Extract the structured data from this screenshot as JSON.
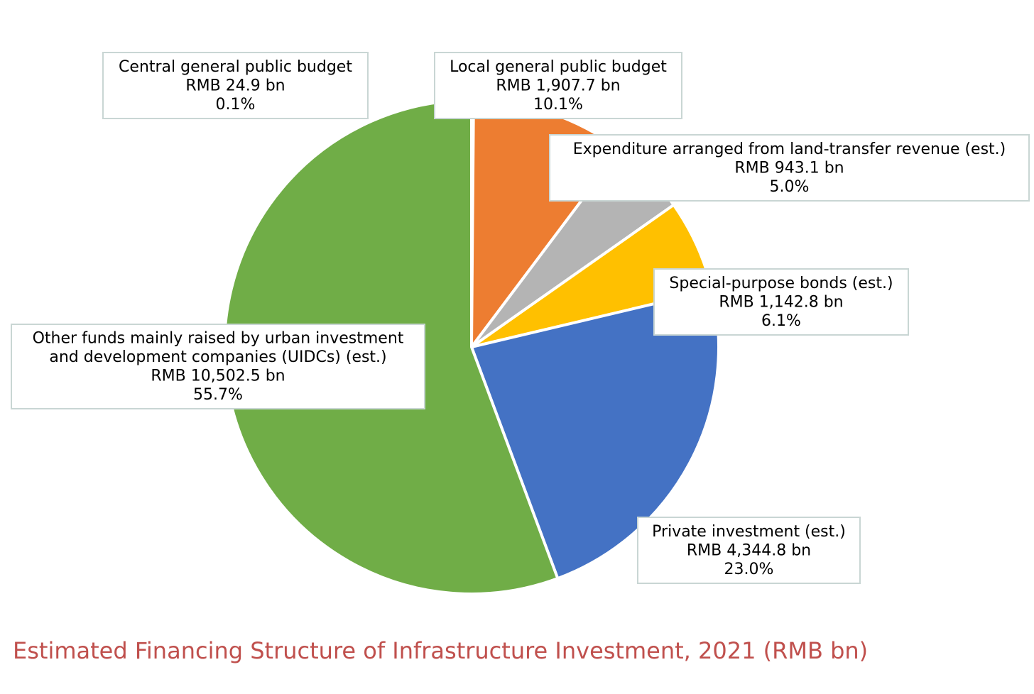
{
  "chart_data": {
    "type": "pie",
    "title": "Estimated Financing Structure of Infrastructure Investment, 2021 (RMB bn)",
    "slices": [
      {
        "label_lines": [
          "Central general public budget"
        ],
        "amount_text": "RMB 24.9 bn",
        "value": 24.9,
        "percent_text": "0.1%",
        "color": "#4472c4"
      },
      {
        "label_lines": [
          "Local general public budget"
        ],
        "amount_text": "RMB 1,907.7 bn",
        "value": 1907.7,
        "percent_text": "10.1%",
        "color": "#ed7d31"
      },
      {
        "label_lines": [
          "Expenditure arranged from land-transfer revenue (est.)"
        ],
        "amount_text": "RMB 943.1 bn",
        "value": 943.1,
        "percent_text": "5.0%",
        "color": "#b4b4b4"
      },
      {
        "label_lines": [
          "Special-purpose bonds (est.)"
        ],
        "amount_text": "RMB 1,142.8 bn",
        "value": 1142.8,
        "percent_text": "6.1%",
        "color": "#ffc000"
      },
      {
        "label_lines": [
          "Private investment (est.)"
        ],
        "amount_text": "RMB 4,344.8 bn",
        "value": 4344.8,
        "percent_text": "23.0%",
        "color": "#4472c4"
      },
      {
        "label_lines": [
          "Other funds mainly raised by urban investment",
          "and development companies (UIDCs) (est.)"
        ],
        "amount_text": "RMB 10,502.5 bn",
        "value": 10502.5,
        "percent_text": "55.7%",
        "color": "#70ad47"
      }
    ],
    "title_color": "#c0504d"
  }
}
